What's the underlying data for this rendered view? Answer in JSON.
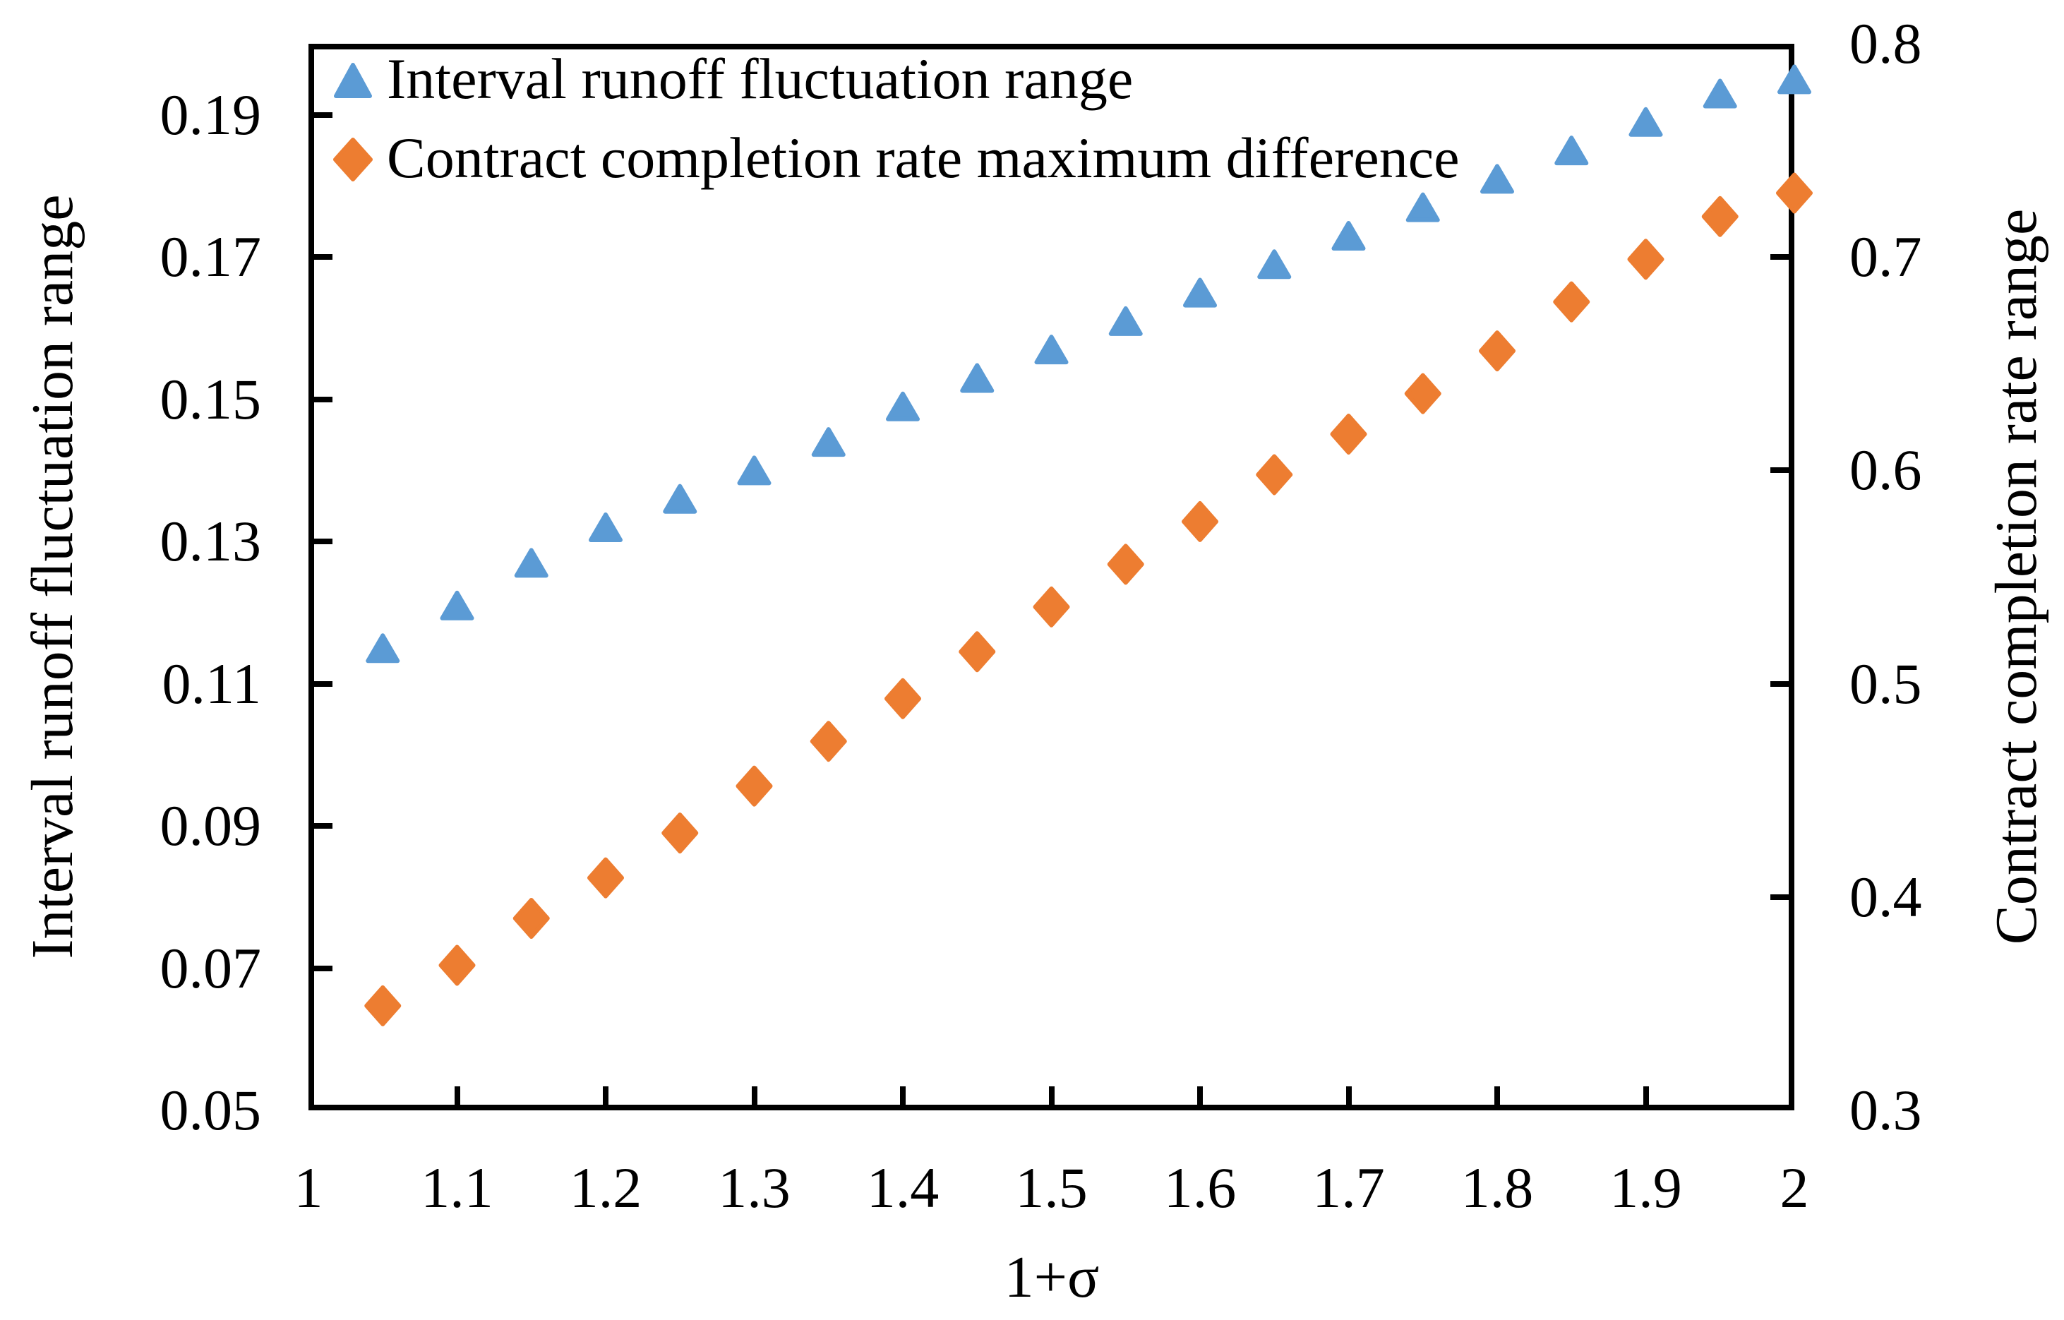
{
  "figure": {
    "background": "#ffffff",
    "text_color": "#000000"
  },
  "legend": {
    "position": "top-left-inside",
    "items": [
      {
        "label": "Interval runoff fluctuation range",
        "marker": "triangle-icon",
        "color": "#5B9BD5"
      },
      {
        "label": "Contract completion rate maximum difference",
        "marker": "diamond-icon",
        "color": "#ED7D31"
      }
    ]
  },
  "axes": {
    "x": {
      "title": "1+σ",
      "min": 1,
      "max": 2,
      "tick_values": [
        1,
        1.1,
        1.2,
        1.3,
        1.4,
        1.5,
        1.6,
        1.7,
        1.8,
        1.9,
        2
      ],
      "tick_labels": [
        "1",
        "1.1",
        "1.2",
        "1.3",
        "1.4",
        "1.5",
        "1.6",
        "1.7",
        "1.8",
        "1.9",
        "2"
      ]
    },
    "y_left": {
      "title": "Interval runoff fluctuation range",
      "min": 0.05,
      "max": 0.2,
      "tick_values": [
        0.19,
        0.17,
        0.15,
        0.13,
        0.11,
        0.09,
        0.07,
        0.05
      ],
      "tick_labels": [
        "0.19",
        "0.17",
        "0.15",
        "0.13",
        "0.11",
        "0.09",
        "0.07",
        "0.05"
      ]
    },
    "y_right": {
      "title": "Contract completion rate range",
      "min": 0.3,
      "max": 0.8,
      "tick_values": [
        0.8,
        0.7,
        0.6,
        0.5,
        0.4,
        0.3
      ],
      "tick_labels": [
        "0.8",
        "0.7",
        "0.6",
        "0.5",
        "0.4",
        "0.3"
      ]
    }
  },
  "chart_data": {
    "type": "scatter",
    "x": [
      1.05,
      1.1,
      1.15,
      1.2,
      1.25,
      1.3,
      1.35,
      1.4,
      1.45,
      1.5,
      1.55,
      1.6,
      1.65,
      1.7,
      1.75,
      1.8,
      1.85,
      1.9,
      1.95,
      2.0
    ],
    "series": [
      {
        "name": "Interval runoff fluctuation range",
        "axis": "left",
        "marker": "triangle",
        "color": "#5B9BD5",
        "values": [
          0.115,
          0.121,
          0.127,
          0.132,
          0.136,
          0.14,
          0.144,
          0.149,
          0.153,
          0.157,
          0.161,
          0.165,
          0.169,
          0.173,
          0.177,
          0.181,
          0.185,
          0.189,
          0.193,
          0.195
        ]
      },
      {
        "name": "Contract completion rate maximum difference",
        "axis": "right",
        "marker": "diamond",
        "color": "#ED7D31",
        "values": [
          0.349,
          0.368,
          0.39,
          0.409,
          0.43,
          0.452,
          0.473,
          0.493,
          0.515,
          0.536,
          0.556,
          0.576,
          0.598,
          0.617,
          0.636,
          0.656,
          0.679,
          0.699,
          0.719,
          0.73
        ]
      }
    ],
    "layout": {
      "grid": false,
      "legend_position": "top-left-inside",
      "x_range": [
        1,
        2
      ],
      "y_left_range": [
        0.05,
        0.2
      ],
      "y_right_range": [
        0.3,
        0.8
      ],
      "ticks_direction": "inside"
    }
  }
}
